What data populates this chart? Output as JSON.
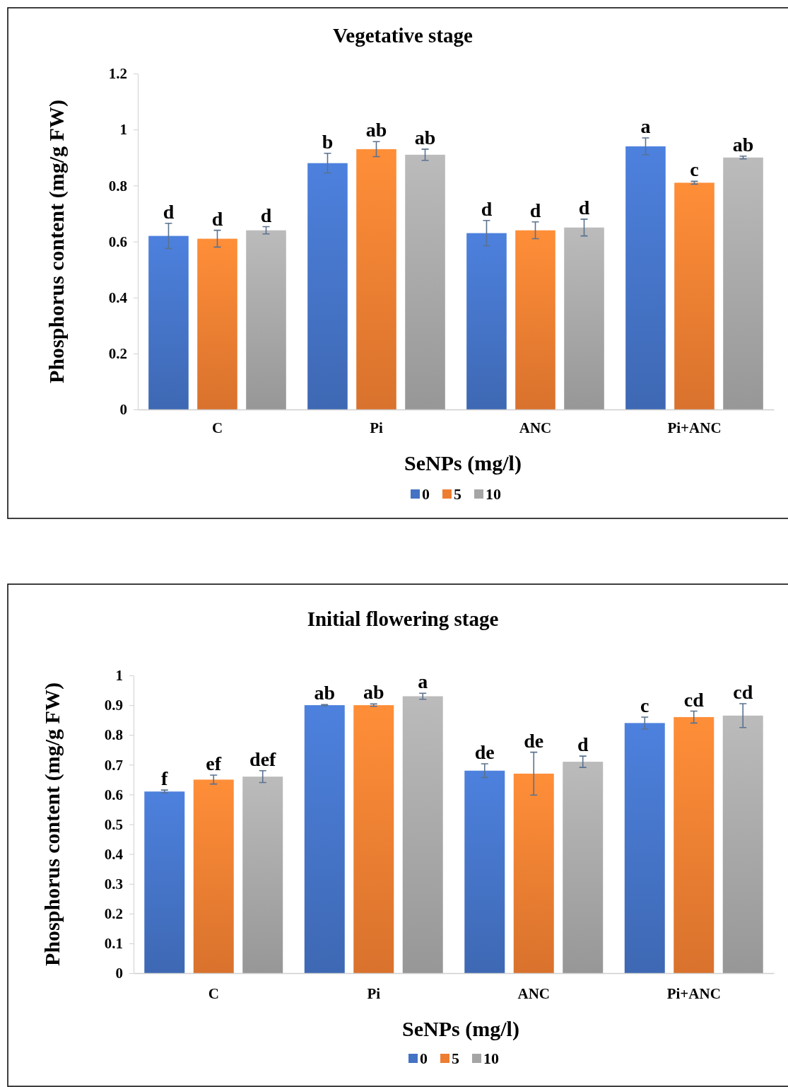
{
  "chart_data": [
    {
      "type": "bar",
      "title": "Vegetative stage",
      "xlabel": "SeNPs (mg/l)",
      "ylabel": "Phosphorus content (mg/g FW)",
      "categories": [
        "C",
        "Pi",
        "ANC",
        "Pi+ANC"
      ],
      "ylim": [
        0,
        1.2
      ],
      "yticks": [
        0,
        0.2,
        0.4,
        0.6,
        0.8,
        1,
        1.2
      ],
      "legend": "bottom",
      "grid": false,
      "series": [
        {
          "name": "0",
          "color": "#4472c4",
          "values": [
            0.62,
            0.88,
            0.63,
            0.94
          ],
          "errors": [
            0.045,
            0.035,
            0.045,
            0.03
          ],
          "value_labels": [
            "d",
            "b",
            "d",
            "a"
          ]
        },
        {
          "name": "5",
          "color": "#ed7d31",
          "values": [
            0.61,
            0.93,
            0.64,
            0.81
          ],
          "errors": [
            0.03,
            0.027,
            0.03,
            0.005
          ],
          "value_labels": [
            "d",
            "ab",
            "d",
            "c"
          ]
        },
        {
          "name": "10",
          "color": "#a5a5a5",
          "values": [
            0.64,
            0.91,
            0.65,
            0.9
          ],
          "errors": [
            0.013,
            0.02,
            0.03,
            0.005
          ],
          "value_labels": [
            "d",
            "ab",
            "d",
            "ab"
          ]
        }
      ]
    },
    {
      "type": "bar",
      "title": "Initial flowering stage",
      "xlabel": "SeNPs (mg/l)",
      "ylabel": "Phosphorus content (mg/g FW)",
      "categories": [
        "C",
        "Pi",
        "ANC",
        "Pi+ANC"
      ],
      "ylim": [
        0,
        1
      ],
      "yticks": [
        0,
        0.1,
        0.2,
        0.3,
        0.4,
        0.5,
        0.6,
        0.7,
        0.8,
        0.9,
        1
      ],
      "legend": "bottom",
      "grid": false,
      "series": [
        {
          "name": "0",
          "color": "#4472c4",
          "values": [
            0.61,
            0.9,
            0.68,
            0.84
          ],
          "errors": [
            0.005,
            0.002,
            0.023,
            0.02
          ],
          "value_labels": [
            "f",
            "ab",
            "de",
            "c"
          ]
        },
        {
          "name": "5",
          "color": "#ed7d31",
          "values": [
            0.65,
            0.9,
            0.67,
            0.86
          ],
          "errors": [
            0.015,
            0.004,
            0.072,
            0.02
          ],
          "value_labels": [
            "ef",
            "ab",
            "de",
            "cd"
          ]
        },
        {
          "name": "10",
          "color": "#a5a5a5",
          "values": [
            0.66,
            0.93,
            0.71,
            0.865
          ],
          "errors": [
            0.02,
            0.01,
            0.019,
            0.04
          ],
          "value_labels": [
            "def",
            "a",
            "d",
            "cd"
          ]
        }
      ]
    }
  ]
}
